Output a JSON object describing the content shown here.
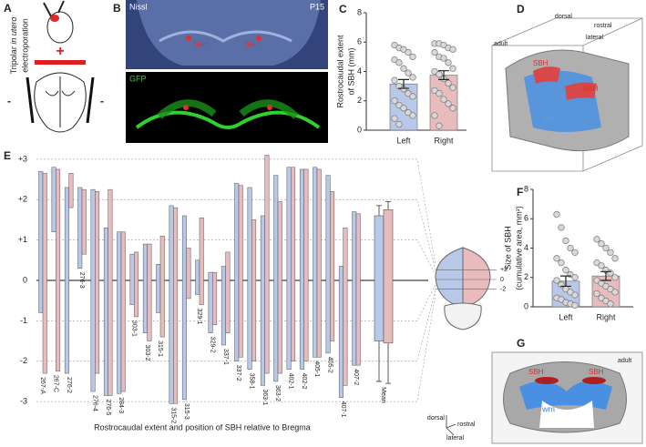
{
  "panels": {
    "A": {
      "label": "A",
      "caption": [
        "Tripolar",
        "in utero",
        "electroporation"
      ],
      "plus": "+",
      "minus_left": "-",
      "minus_right": "-"
    },
    "B": {
      "label": "B",
      "stain": "Nissl",
      "age": "P15",
      "sbh_left": "SBH",
      "sbh_right": "SBH",
      "gfp": "GFP"
    },
    "D": {
      "label": "D",
      "adult": "adult",
      "dorsal": "dorsal",
      "rostral": "rostral",
      "lateral": "lateral",
      "sbh_left": "SBH",
      "sbh_right": "SBH",
      "wm": "wm"
    },
    "G": {
      "label": "G",
      "adult": "adult",
      "sbh_left": "SBH",
      "sbh_right": "SBH",
      "wm": "wm"
    },
    "E": {
      "dorsal": "dorsal",
      "rostral": "rostral",
      "lateral": "lateral"
    }
  },
  "chart_data": [
    {
      "panel": "C",
      "type": "bar",
      "y_label": [
        "Rostrocaudal extent",
        "of SBH (mm)"
      ],
      "categories": [
        "Left",
        "Right"
      ],
      "values": [
        3.15,
        3.75
      ],
      "errors": [
        0.3,
        0.3
      ],
      "colors": [
        "#b8c8e8",
        "#e8bcbc"
      ],
      "points": [
        [
          5.8,
          5.6,
          5.5,
          5.3,
          5.0,
          4.8,
          4.6,
          4.2,
          3.9,
          3.6,
          3.4,
          3.0,
          2.8,
          2.5,
          2.3,
          2.0,
          1.7,
          1.5,
          1.2,
          1.0,
          0.8,
          0.4
        ],
        [
          5.9,
          5.9,
          5.8,
          5.6,
          5.5,
          5.3,
          5.0,
          4.9,
          4.6,
          4.2,
          4.0,
          3.8,
          3.5,
          3.2,
          2.9,
          2.7,
          2.5,
          2.1,
          1.8,
          1.5,
          1.0,
          0.3
        ]
      ],
      "ylim": [
        0,
        8
      ],
      "yticks": [
        0,
        2,
        4,
        6,
        8
      ]
    },
    {
      "panel": "F",
      "type": "bar",
      "y_label": [
        "Size of SBH",
        "(cumulative area, mm²)"
      ],
      "categories": [
        "Left",
        "Right"
      ],
      "values": [
        1.75,
        2.1
      ],
      "errors": [
        0.35,
        0.3
      ],
      "colors": [
        "#b8c8e8",
        "#e8bcbc"
      ],
      "points": [
        [
          6.3,
          5.4,
          4.5,
          4.0,
          3.7,
          3.3,
          3.0,
          2.5,
          2.2,
          2.0,
          1.8,
          1.5,
          1.2,
          1.0,
          0.8,
          0.6,
          0.5,
          0.3,
          0.2,
          0.1
        ],
        [
          4.6,
          4.3,
          4.0,
          3.7,
          3.3,
          3.0,
          2.8,
          2.5,
          2.3,
          2.0,
          1.8,
          1.6,
          1.4,
          1.2,
          1.0,
          0.9,
          0.6,
          0.4,
          0.2
        ]
      ],
      "ylim": [
        0,
        8
      ],
      "yticks": [
        0,
        2,
        4,
        6,
        8
      ]
    },
    {
      "panel": "E",
      "type": "range-bar",
      "x_label": "Rostrocaudal extent and position of SBH relative to Bregma",
      "categories": [
        "267-A",
        "267-C",
        "276-2",
        "276-3",
        "276-4",
        "276-5",
        "284-3",
        "303-1",
        "303-2",
        "315-1",
        "315-2",
        "315-3",
        "329-1",
        "329-2",
        "337-1",
        "337-2",
        "358-1",
        "363-1",
        "363-2",
        "402-1",
        "402-2",
        "405-1",
        "405-2",
        "407-1",
        "407-2"
      ],
      "series": [
        {
          "color": "#b8c8e8",
          "low": [
            -0.8,
            1.2,
            -2.3,
            0.3,
            -2.75,
            -2.85,
            -2.8,
            -0.6,
            -1.3,
            -0.8,
            -3.05,
            -2.95,
            -0.35,
            -1.3,
            -1.6,
            -2.0,
            -2.2,
            -2.6,
            -2.5,
            -2.2,
            -2.2,
            -1.9,
            -1.8,
            -2.9,
            -2.1
          ],
          "high": [
            2.7,
            2.8,
            2.3,
            2.3,
            2.25,
            1.3,
            1.2,
            0.65,
            0.9,
            0.4,
            1.85,
            1.6,
            0.5,
            0.2,
            0.35,
            2.4,
            2.3,
            1.6,
            2.6,
            2.8,
            2.75,
            2.8,
            2.6,
            0.35,
            1.7
          ]
        },
        {
          "color": "#e8bcbc",
          "low": [
            -2.3,
            -2.25,
            1.8,
            0.65,
            -2.3,
            -2.85,
            -2.75,
            -0.9,
            -1.5,
            -1.4,
            -3.05,
            -0.45,
            -0.6,
            -1.1,
            -1.3,
            -1.9,
            -2.0,
            -2.3,
            -2.3,
            -2.0,
            -2.0,
            -1.9,
            -1.5,
            -2.6,
            -2.1
          ],
          "high": [
            2.65,
            2.75,
            2.65,
            2.25,
            2.2,
            2.25,
            1.2,
            0.7,
            0.9,
            1.1,
            1.8,
            0.8,
            1.55,
            0.2,
            0.7,
            2.35,
            1.5,
            3.1,
            1.95,
            2.8,
            2.75,
            2.75,
            2.2,
            1.3,
            1.65
          ]
        }
      ],
      "summary": {
        "label": "Mean",
        "boxes": [
          {
            "low": -1.5,
            "high": 1.6,
            "whisker_low": -2.5,
            "whisker_high": 1.85
          },
          {
            "low": -1.55,
            "high": 1.75,
            "whisker_low": -2.55,
            "whisker_high": 1.95
          }
        ]
      },
      "ylim": [
        -3.2,
        3.2
      ],
      "yticks": [
        {
          "value": 3,
          "label": "+3"
        },
        {
          "value": 2,
          "label": "+2"
        },
        {
          "value": 1,
          "label": "+1"
        },
        0,
        -1,
        -2,
        -3
      ],
      "brain_ticks": [
        {
          "value": 2,
          "label": "+2"
        },
        0,
        -2
      ]
    }
  ]
}
